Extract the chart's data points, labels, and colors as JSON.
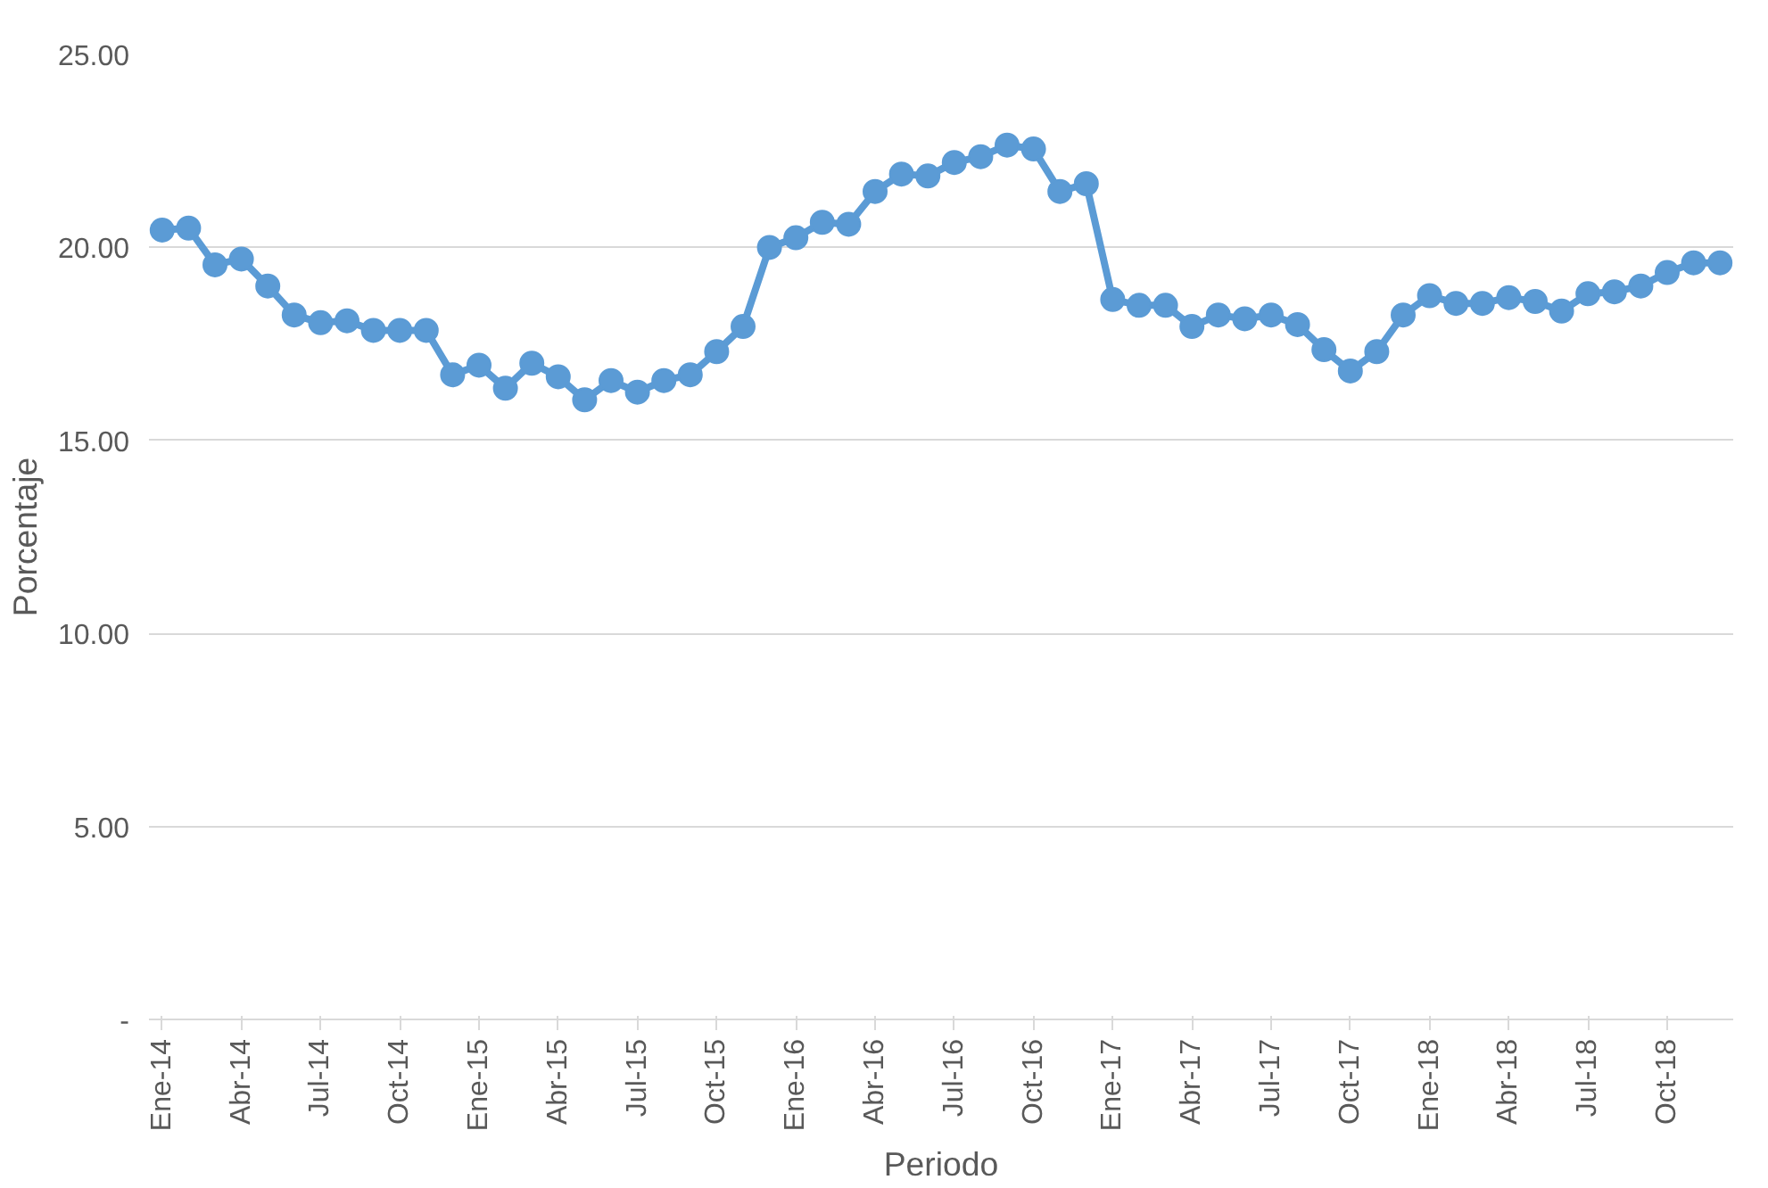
{
  "chart_data": {
    "type": "line",
    "xlabel": "Periodo",
    "ylabel": "Porcentaje",
    "categories": [
      "Ene-14",
      null,
      null,
      "Abr-14",
      null,
      null,
      "Jul-14",
      null,
      null,
      "Oct-14",
      null,
      null,
      "Ene-15",
      null,
      null,
      "Abr-15",
      null,
      null,
      "Jul-15",
      null,
      null,
      "Oct-15",
      null,
      null,
      "Ene-16",
      null,
      null,
      "Abr-16",
      null,
      null,
      "Jul-16",
      null,
      null,
      "Oct-16",
      null,
      null,
      "Ene-17",
      null,
      null,
      "Abr-17",
      null,
      null,
      "Jul-17",
      null,
      null,
      "Oct-17",
      null,
      null,
      "Ene-18",
      null,
      null,
      "Abr-18",
      null,
      null,
      "Jul-18",
      null,
      null,
      "Oct-18",
      null,
      null
    ],
    "series": [
      {
        "color": "#5b9bd5",
        "values": [
          20.45,
          20.5,
          19.55,
          19.7,
          19.0,
          18.25,
          18.05,
          18.1,
          17.85,
          17.85,
          17.85,
          16.7,
          16.95,
          16.35,
          17.0,
          16.65,
          16.05,
          16.55,
          16.25,
          16.55,
          16.7,
          17.3,
          17.95,
          20.0,
          20.25,
          20.65,
          20.6,
          21.45,
          21.9,
          21.85,
          22.2,
          22.35,
          22.65,
          22.55,
          21.45,
          21.65,
          18.65,
          18.5,
          18.5,
          17.95,
          18.25,
          18.15,
          18.25,
          18.0,
          17.35,
          16.8,
          17.3,
          18.25,
          18.75,
          18.55,
          18.55,
          18.7,
          18.6,
          18.35,
          18.8,
          18.85,
          19.0,
          19.35,
          19.6,
          19.6
        ]
      }
    ],
    "ylim": [
      0,
      25
    ],
    "yticks": [
      {
        "value": 0,
        "label": "-"
      },
      {
        "value": 5,
        "label": "5.00"
      },
      {
        "value": 10,
        "label": "10.00"
      },
      {
        "value": 15,
        "label": "15.00"
      },
      {
        "value": 20,
        "label": "20.00"
      },
      {
        "value": 25,
        "label": "25.00"
      }
    ],
    "grid": "y",
    "marker": "circle",
    "line_style": "solid"
  }
}
